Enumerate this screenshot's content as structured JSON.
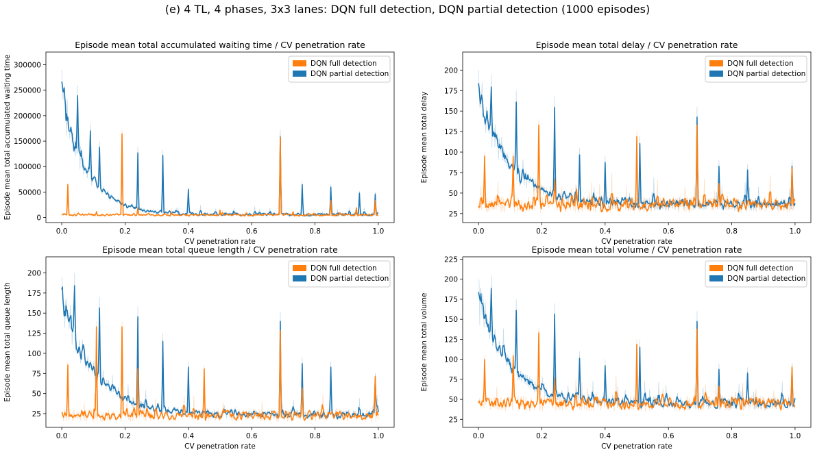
{
  "figure": {
    "suptitle": "(e) 4 TL, 4 phases, 3x3 lanes: DQN full detection, DQN partial detection (1000 episodes)"
  },
  "colors": {
    "full": "#ff7f0e",
    "partial": "#1f77b4"
  },
  "chart_data": [
    {
      "type": "line",
      "title": "Episode mean total accumulated waiting time / CV penetration rate",
      "xlabel": "CV penetration rate",
      "ylabel": "Episode mean total accumulated waiting time",
      "xlim": [
        -0.05,
        1.05
      ],
      "ylim": [
        -10000,
        325000
      ],
      "xticks": [
        0.0,
        0.2,
        0.4,
        0.6,
        0.8,
        1.0
      ],
      "xtick_labels": [
        "0.0",
        "0.2",
        "0.4",
        "0.6",
        "0.8",
        "1.0"
      ],
      "yticks": [
        0,
        50000,
        100000,
        150000,
        200000,
        250000,
        300000
      ],
      "ytick_labels": [
        "0",
        "50000",
        "100000",
        "150000",
        "200000",
        "250000",
        "300000"
      ],
      "legend": "top-right",
      "series": [
        {
          "name": "DQN full detection",
          "baseline": 5000,
          "noise": 3000,
          "spikes": [
            [
              0.02,
              68000
            ],
            [
              0.11,
              12000
            ],
            [
              0.19,
              173000
            ],
            [
              0.24,
              20000
            ],
            [
              0.5,
              15000
            ],
            [
              0.69,
              165000
            ],
            [
              0.73,
              12000
            ],
            [
              0.85,
              35000
            ],
            [
              0.93,
              20000
            ],
            [
              0.99,
              35000
            ]
          ]
        },
        {
          "name": "DQN partial detection",
          "start": 240000,
          "decay": 0.08,
          "baseline": 6000,
          "noise": 4000,
          "decay_noise": 0.2,
          "spikes": [
            [
              0.0,
              290000
            ],
            [
              0.05,
              260000
            ],
            [
              0.09,
              185000
            ],
            [
              0.12,
              150000
            ],
            [
              0.24,
              138000
            ],
            [
              0.32,
              133000
            ],
            [
              0.4,
              60000
            ],
            [
              0.69,
              172000
            ],
            [
              0.76,
              70000
            ],
            [
              0.85,
              65000
            ],
            [
              0.94,
              52000
            ],
            [
              0.99,
              50000
            ]
          ]
        }
      ]
    },
    {
      "type": "line",
      "title": "Episode mean total delay / CV penetration rate",
      "xlabel": "CV penetration rate",
      "ylabel": "Episode mean total delay",
      "xlim": [
        -0.05,
        1.05
      ],
      "ylim": [
        14,
        222
      ],
      "xticks": [
        0.0,
        0.2,
        0.4,
        0.6,
        0.8,
        1.0
      ],
      "xtick_labels": [
        "0.0",
        "0.2",
        "0.4",
        "0.6",
        "0.8",
        "1.0"
      ],
      "yticks": [
        25,
        50,
        75,
        100,
        125,
        150,
        175,
        200
      ],
      "ytick_labels": [
        "25",
        "50",
        "75",
        "100",
        "125",
        "150",
        "175",
        "200"
      ],
      "legend": "top-right",
      "series": [
        {
          "name": "DQN full detection",
          "baseline": 36,
          "noise": 10,
          "spikes": [
            [
              0.02,
              100
            ],
            [
              0.11,
              100
            ],
            [
              0.19,
              140
            ],
            [
              0.24,
              70
            ],
            [
              0.5,
              125
            ],
            [
              0.69,
              140
            ],
            [
              0.76,
              65
            ],
            [
              0.99,
              85
            ]
          ]
        },
        {
          "name": "DQN partial detection",
          "start": 175,
          "decay": 0.1,
          "baseline": 36,
          "noise": 8,
          "decay_noise": 0.18,
          "spikes": [
            [
              0.0,
              200
            ],
            [
              0.04,
              195
            ],
            [
              0.12,
              175
            ],
            [
              0.24,
              168
            ],
            [
              0.32,
              105
            ],
            [
              0.4,
              95
            ],
            [
              0.51,
              120
            ],
            [
              0.69,
              155
            ],
            [
              0.76,
              90
            ],
            [
              0.85,
              85
            ],
            [
              0.99,
              90
            ]
          ]
        }
      ]
    },
    {
      "type": "line",
      "title": "Episode mean total queue length / CV penetration rate",
      "xlabel": "CV penetration rate",
      "ylabel": "Episode mean total queue length",
      "xlim": [
        -0.05,
        1.05
      ],
      "ylim": [
        8,
        220
      ],
      "xticks": [
        0.0,
        0.2,
        0.4,
        0.6,
        0.8,
        1.0
      ],
      "xtick_labels": [
        "0.0",
        "0.2",
        "0.4",
        "0.6",
        "0.8",
        "1.0"
      ],
      "yticks": [
        25,
        50,
        75,
        100,
        125,
        150,
        175,
        200
      ],
      "ytick_labels": [
        "25",
        "50",
        "75",
        "100",
        "125",
        "150",
        "175",
        "200"
      ],
      "legend": "top-right",
      "series": [
        {
          "name": "DQN full detection",
          "baseline": 23,
          "noise": 8,
          "spikes": [
            [
              0.02,
              90
            ],
            [
              0.11,
              140
            ],
            [
              0.19,
              140
            ],
            [
              0.24,
              85
            ],
            [
              0.45,
              85
            ],
            [
              0.69,
              135
            ],
            [
              0.76,
              60
            ],
            [
              0.99,
              75
            ]
          ]
        },
        {
          "name": "DQN partial detection",
          "start": 170,
          "decay": 0.1,
          "baseline": 24,
          "noise": 6,
          "decay_noise": 0.18,
          "spikes": [
            [
              0.0,
              195
            ],
            [
              0.04,
              200
            ],
            [
              0.12,
              170
            ],
            [
              0.24,
              158
            ],
            [
              0.32,
              125
            ],
            [
              0.4,
              90
            ],
            [
              0.69,
              152
            ],
            [
              0.76,
              95
            ],
            [
              0.85,
              90
            ],
            [
              0.99,
              75
            ]
          ]
        }
      ]
    },
    {
      "type": "line",
      "title": "Episode mean total volume / CV penetration rate",
      "xlabel": "CV penetration rate",
      "ylabel": "Episode mean total volume",
      "xlim": [
        -0.05,
        1.05
      ],
      "ylim": [
        15,
        228
      ],
      "xticks": [
        0.0,
        0.2,
        0.4,
        0.6,
        0.8,
        1.0
      ],
      "xtick_labels": [
        "0.0",
        "0.2",
        "0.4",
        "0.6",
        "0.8",
        "1.0"
      ],
      "yticks": [
        25,
        50,
        75,
        100,
        125,
        150,
        175,
        200,
        225
      ],
      "ytick_labels": [
        "25",
        "50",
        "75",
        "100",
        "125",
        "150",
        "175",
        "200",
        "225"
      ],
      "legend": "top-right",
      "series": [
        {
          "name": "DQN full detection",
          "baseline": 45,
          "noise": 10,
          "spikes": [
            [
              0.02,
              105
            ],
            [
              0.11,
              110
            ],
            [
              0.19,
              140
            ],
            [
              0.24,
              80
            ],
            [
              0.5,
              125
            ],
            [
              0.69,
              145
            ],
            [
              0.76,
              70
            ],
            [
              0.99,
              95
            ]
          ]
        },
        {
          "name": "DQN partial detection",
          "start": 175,
          "decay": 0.1,
          "baseline": 45,
          "noise": 8,
          "decay_noise": 0.18,
          "spikes": [
            [
              0.0,
              200
            ],
            [
              0.04,
              205
            ],
            [
              0.12,
              175
            ],
            [
              0.24,
              170
            ],
            [
              0.32,
              110
            ],
            [
              0.4,
              100
            ],
            [
              0.51,
              125
            ],
            [
              0.69,
              160
            ],
            [
              0.76,
              95
            ],
            [
              0.85,
              90
            ],
            [
              0.99,
              95
            ]
          ]
        }
      ]
    }
  ]
}
